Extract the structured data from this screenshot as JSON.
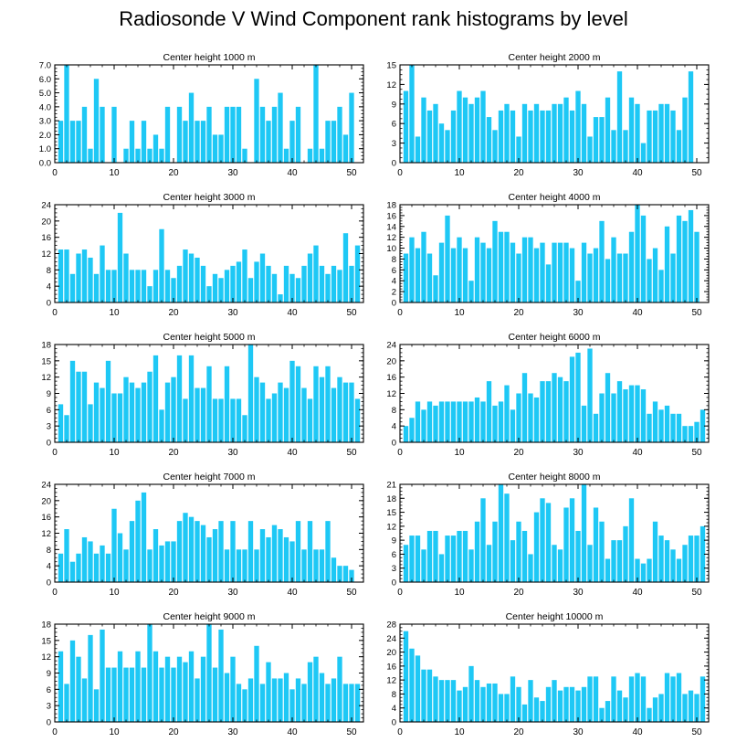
{
  "figure": {
    "title": "Radiosonde V Wind Component rank histograms by level",
    "bar_color": "#1ec8f5",
    "axis_color": "#000000"
  },
  "chart_data": [
    {
      "type": "bar",
      "title": "Center height 1000 m",
      "x": [
        1,
        2,
        3,
        4,
        5,
        6,
        7,
        8,
        9,
        10,
        11,
        12,
        13,
        14,
        15,
        16,
        17,
        18,
        19,
        20,
        21,
        22,
        23,
        24,
        25,
        26,
        27,
        28,
        29,
        30,
        31,
        32,
        33,
        34,
        35,
        36,
        37,
        38,
        39,
        40,
        41,
        42,
        43,
        44,
        45,
        46,
        47,
        48,
        49,
        50,
        51
      ],
      "values": [
        3,
        7,
        3,
        3,
        4,
        1,
        6,
        4,
        0,
        4,
        0,
        1,
        3,
        1,
        3,
        1,
        2,
        1,
        4,
        0,
        4,
        3,
        5,
        3,
        3,
        4,
        2,
        2,
        4,
        4,
        4,
        1,
        0,
        6,
        4,
        3,
        4,
        5,
        1,
        3,
        4,
        0,
        1,
        7,
        1,
        3,
        3,
        4,
        2,
        5,
        0
      ],
      "xlim": [
        0,
        52
      ],
      "xticks": [
        0,
        10,
        20,
        30,
        40,
        50
      ],
      "ylim": [
        0,
        7
      ],
      "yticks": [
        0,
        1,
        2,
        3,
        4,
        5,
        6,
        7
      ],
      "ytick_labels": [
        "0.0",
        "1.0",
        "2.0",
        "3.0",
        "4.0",
        "5.0",
        "6.0",
        "7.0"
      ],
      "xlabel": "",
      "ylabel": "",
      "ytick_side": "left"
    },
    {
      "type": "bar",
      "title": "Center height 2000 m",
      "x": [
        1,
        2,
        3,
        4,
        5,
        6,
        7,
        8,
        9,
        10,
        11,
        12,
        13,
        14,
        15,
        16,
        17,
        18,
        19,
        20,
        21,
        22,
        23,
        24,
        25,
        26,
        27,
        28,
        29,
        30,
        31,
        32,
        33,
        34,
        35,
        36,
        37,
        38,
        39,
        40,
        41,
        42,
        43,
        44,
        45,
        46,
        47,
        48,
        49,
        50,
        51
      ],
      "values": [
        11,
        15,
        4,
        10,
        8,
        9,
        6,
        5,
        8,
        11,
        10,
        9,
        10,
        11,
        7,
        5,
        8,
        9,
        8,
        4,
        9,
        8,
        9,
        8,
        8,
        9,
        9,
        10,
        8,
        11,
        9,
        4,
        7,
        7,
        10,
        5,
        14,
        5,
        10,
        9,
        3,
        8,
        8,
        9,
        9,
        8,
        5,
        10,
        14,
        0,
        0
      ],
      "xlim": [
        0,
        52
      ],
      "xticks": [
        0,
        10,
        20,
        30,
        40,
        50
      ],
      "ylim": [
        0,
        15
      ],
      "yticks": [
        0,
        3,
        6,
        9,
        12,
        15
      ],
      "ytick_labels": [
        "0",
        "3",
        "6",
        "9",
        "12",
        "15"
      ],
      "xlabel": "",
      "ylabel": "",
      "ytick_side": "left"
    },
    {
      "type": "bar",
      "title": "Center height 3000 m",
      "x": [
        1,
        2,
        3,
        4,
        5,
        6,
        7,
        8,
        9,
        10,
        11,
        12,
        13,
        14,
        15,
        16,
        17,
        18,
        19,
        20,
        21,
        22,
        23,
        24,
        25,
        26,
        27,
        28,
        29,
        30,
        31,
        32,
        33,
        34,
        35,
        36,
        37,
        38,
        39,
        40,
        41,
        42,
        43,
        44,
        45,
        46,
        47,
        48,
        49,
        50,
        51
      ],
      "values": [
        13,
        13,
        7,
        12,
        13,
        11,
        7,
        14,
        8,
        8,
        22,
        12,
        8,
        8,
        8,
        4,
        8,
        18,
        8,
        6,
        9,
        13,
        12,
        11,
        9,
        4,
        7,
        6,
        8,
        9,
        10,
        13,
        6,
        10,
        12,
        9,
        7,
        2,
        9,
        7,
        6,
        9,
        12,
        14,
        9,
        7,
        9,
        8,
        17,
        9,
        14
      ],
      "xlim": [
        0,
        52
      ],
      "xticks": [
        0,
        10,
        20,
        30,
        40,
        50
      ],
      "ylim": [
        0,
        24
      ],
      "yticks": [
        0,
        4,
        8,
        12,
        16,
        20,
        24
      ],
      "ytick_labels": [
        "0",
        "4",
        "8",
        "12",
        "16",
        "20",
        "24"
      ],
      "xlabel": "",
      "ylabel": "",
      "ytick_side": "left"
    },
    {
      "type": "bar",
      "title": "Center height 4000 m",
      "x": [
        1,
        2,
        3,
        4,
        5,
        6,
        7,
        8,
        9,
        10,
        11,
        12,
        13,
        14,
        15,
        16,
        17,
        18,
        19,
        20,
        21,
        22,
        23,
        24,
        25,
        26,
        27,
        28,
        29,
        30,
        31,
        32,
        33,
        34,
        35,
        36,
        37,
        38,
        39,
        40,
        41,
        42,
        43,
        44,
        45,
        46,
        47,
        48,
        49,
        50,
        51
      ],
      "values": [
        9,
        12,
        10,
        13,
        9,
        5,
        11,
        16,
        10,
        12,
        10,
        4,
        12,
        11,
        10,
        15,
        13,
        13,
        11,
        9,
        12,
        12,
        10,
        11,
        7,
        11,
        11,
        11,
        10,
        4,
        11,
        9,
        10,
        15,
        8,
        12,
        9,
        9,
        13,
        18,
        16,
        8,
        10,
        6,
        14,
        9,
        16,
        15,
        17,
        13,
        0
      ],
      "xlim": [
        0,
        52
      ],
      "xticks": [
        0,
        10,
        20,
        30,
        40,
        50
      ],
      "ylim": [
        0,
        18
      ],
      "yticks": [
        0,
        2,
        4,
        6,
        8,
        10,
        12,
        14,
        16,
        18
      ],
      "ytick_labels": [
        "0",
        "2",
        "4",
        "6",
        "8",
        "10",
        "12",
        "14",
        "16",
        "18"
      ],
      "xlabel": "",
      "ylabel": "",
      "ytick_side": "left"
    },
    {
      "type": "bar",
      "title": "Center height 5000 m",
      "x": [
        1,
        2,
        3,
        4,
        5,
        6,
        7,
        8,
        9,
        10,
        11,
        12,
        13,
        14,
        15,
        16,
        17,
        18,
        19,
        20,
        21,
        22,
        23,
        24,
        25,
        26,
        27,
        28,
        29,
        30,
        31,
        32,
        33,
        34,
        35,
        36,
        37,
        38,
        39,
        40,
        41,
        42,
        43,
        44,
        45,
        46,
        47,
        48,
        49,
        50,
        51
      ],
      "values": [
        7,
        5,
        15,
        13,
        13,
        7,
        11,
        10,
        15,
        9,
        9,
        12,
        11,
        10,
        11,
        13,
        16,
        6,
        11,
        12,
        16,
        8,
        16,
        10,
        10,
        14,
        8,
        8,
        14,
        8,
        8,
        5,
        18,
        12,
        11,
        8,
        9,
        11,
        10,
        15,
        14,
        10,
        8,
        14,
        12,
        14,
        10,
        12,
        11,
        11,
        8
      ],
      "xlim": [
        0,
        52
      ],
      "xticks": [
        0,
        10,
        20,
        30,
        40,
        50
      ],
      "ylim": [
        0,
        18
      ],
      "yticks": [
        0,
        3,
        6,
        9,
        12,
        15,
        18
      ],
      "ytick_labels": [
        "0",
        "3",
        "6",
        "9",
        "12",
        "15",
        "18"
      ],
      "xlabel": "",
      "ylabel": "",
      "ytick_side": "left"
    },
    {
      "type": "bar",
      "title": "Center height 6000 m",
      "x": [
        1,
        2,
        3,
        4,
        5,
        6,
        7,
        8,
        9,
        10,
        11,
        12,
        13,
        14,
        15,
        16,
        17,
        18,
        19,
        20,
        21,
        22,
        23,
        24,
        25,
        26,
        27,
        28,
        29,
        30,
        31,
        32,
        33,
        34,
        35,
        36,
        37,
        38,
        39,
        40,
        41,
        42,
        43,
        44,
        45,
        46,
        47,
        48,
        49,
        50,
        51
      ],
      "values": [
        4,
        6,
        10,
        8,
        10,
        9,
        10,
        10,
        10,
        10,
        10,
        10,
        11,
        10,
        15,
        9,
        10,
        14,
        8,
        12,
        17,
        12,
        11,
        15,
        15,
        17,
        16,
        15,
        21,
        22,
        9,
        23,
        7,
        12,
        17,
        12,
        15,
        13,
        14,
        14,
        13,
        7,
        10,
        8,
        9,
        7,
        7,
        4,
        4,
        5,
        8
      ],
      "xlim": [
        0,
        52
      ],
      "xticks": [
        0,
        10,
        20,
        30,
        40,
        50
      ],
      "ylim": [
        0,
        24
      ],
      "yticks": [
        0,
        4,
        8,
        12,
        16,
        20,
        24
      ],
      "ytick_labels": [
        "0",
        "4",
        "8",
        "12",
        "16",
        "20",
        "24"
      ],
      "xlabel": "",
      "ylabel": "",
      "ytick_side": "left"
    },
    {
      "type": "bar",
      "title": "Center height 7000 m",
      "x": [
        1,
        2,
        3,
        4,
        5,
        6,
        7,
        8,
        9,
        10,
        11,
        12,
        13,
        14,
        15,
        16,
        17,
        18,
        19,
        20,
        21,
        22,
        23,
        24,
        25,
        26,
        27,
        28,
        29,
        30,
        31,
        32,
        33,
        34,
        35,
        36,
        37,
        38,
        39,
        40,
        41,
        42,
        43,
        44,
        45,
        46,
        47,
        48,
        49,
        50,
        51
      ],
      "values": [
        7,
        13,
        5,
        7,
        11,
        10,
        7,
        9,
        7,
        18,
        12,
        8,
        15,
        20,
        22,
        8,
        13,
        9,
        10,
        10,
        15,
        17,
        16,
        15,
        14,
        11,
        13,
        15,
        8,
        15,
        8,
        8,
        15,
        8,
        13,
        11,
        14,
        13,
        11,
        10,
        15,
        8,
        15,
        8,
        8,
        15,
        6,
        4,
        4,
        3,
        0
      ],
      "xlim": [
        0,
        52
      ],
      "xticks": [
        0,
        10,
        20,
        30,
        40,
        50
      ],
      "ylim": [
        0,
        24
      ],
      "yticks": [
        0,
        4,
        8,
        12,
        16,
        20,
        24
      ],
      "ytick_labels": [
        "0",
        "4",
        "8",
        "12",
        "16",
        "20",
        "24"
      ],
      "xlabel": "",
      "ylabel": "",
      "ytick_side": "left"
    },
    {
      "type": "bar",
      "title": "Center height 8000 m",
      "x": [
        1,
        2,
        3,
        4,
        5,
        6,
        7,
        8,
        9,
        10,
        11,
        12,
        13,
        14,
        15,
        16,
        17,
        18,
        19,
        20,
        21,
        22,
        23,
        24,
        25,
        26,
        27,
        28,
        29,
        30,
        31,
        32,
        33,
        34,
        35,
        36,
        37,
        38,
        39,
        40,
        41,
        42,
        43,
        44,
        45,
        46,
        47,
        48,
        49,
        50,
        51
      ],
      "values": [
        8,
        10,
        10,
        7,
        11,
        11,
        6,
        10,
        10,
        11,
        11,
        7,
        13,
        18,
        8,
        13,
        21,
        19,
        9,
        13,
        11,
        6,
        15,
        18,
        17,
        8,
        7,
        16,
        18,
        11,
        21,
        8,
        16,
        13,
        5,
        9,
        9,
        12,
        18,
        5,
        4,
        5,
        13,
        10,
        9,
        7,
        5,
        8,
        10,
        10,
        12
      ],
      "xlim": [
        0,
        52
      ],
      "xticks": [
        0,
        10,
        20,
        30,
        40,
        50
      ],
      "ylim": [
        0,
        21
      ],
      "yticks": [
        0,
        3,
        6,
        9,
        12,
        15,
        18,
        21
      ],
      "ytick_labels": [
        "0",
        "3",
        "6",
        "9",
        "12",
        "15",
        "18",
        "21"
      ],
      "xlabel": "",
      "ylabel": "",
      "ytick_side": "left"
    },
    {
      "type": "bar",
      "title": "Center height 9000 m",
      "x": [
        1,
        2,
        3,
        4,
        5,
        6,
        7,
        8,
        9,
        10,
        11,
        12,
        13,
        14,
        15,
        16,
        17,
        18,
        19,
        20,
        21,
        22,
        23,
        24,
        25,
        26,
        27,
        28,
        29,
        30,
        31,
        32,
        33,
        34,
        35,
        36,
        37,
        38,
        39,
        40,
        41,
        42,
        43,
        44,
        45,
        46,
        47,
        48,
        49,
        50,
        51
      ],
      "values": [
        13,
        7,
        15,
        12,
        8,
        16,
        6,
        17,
        10,
        10,
        13,
        10,
        10,
        13,
        10,
        18,
        13,
        10,
        12,
        10,
        12,
        11,
        13,
        8,
        12,
        18,
        10,
        17,
        9,
        12,
        7,
        6,
        8,
        14,
        7,
        11,
        8,
        8,
        9,
        6,
        8,
        7,
        11,
        12,
        9,
        7,
        8,
        12,
        7,
        7,
        7
      ],
      "xlim": [
        0,
        52
      ],
      "xticks": [
        0,
        10,
        20,
        30,
        40,
        50
      ],
      "ylim": [
        0,
        18
      ],
      "yticks": [
        0,
        3,
        6,
        9,
        12,
        15,
        18
      ],
      "ytick_labels": [
        "0",
        "3",
        "6",
        "9",
        "12",
        "15",
        "18"
      ],
      "xlabel": "",
      "ylabel": "",
      "ytick_side": "left"
    },
    {
      "type": "bar",
      "title": "Center height 10000 m",
      "x": [
        1,
        2,
        3,
        4,
        5,
        6,
        7,
        8,
        9,
        10,
        11,
        12,
        13,
        14,
        15,
        16,
        17,
        18,
        19,
        20,
        21,
        22,
        23,
        24,
        25,
        26,
        27,
        28,
        29,
        30,
        31,
        32,
        33,
        34,
        35,
        36,
        37,
        38,
        39,
        40,
        41,
        42,
        43,
        44,
        45,
        46,
        47,
        48,
        49,
        50,
        51
      ],
      "values": [
        26,
        21,
        19,
        15,
        15,
        13,
        12,
        12,
        12,
        9,
        10,
        16,
        12,
        10,
        11,
        11,
        8,
        8,
        13,
        10,
        5,
        12,
        7,
        6,
        10,
        12,
        9,
        10,
        10,
        9,
        10,
        13,
        13,
        4,
        6,
        13,
        9,
        7,
        13,
        14,
        13,
        4,
        7,
        8,
        14,
        13,
        14,
        8,
        9,
        8,
        13
      ],
      "xlim": [
        0,
        52
      ],
      "xticks": [
        0,
        10,
        20,
        30,
        40,
        50
      ],
      "ylim": [
        0,
        28
      ],
      "yticks": [
        0,
        4,
        8,
        12,
        16,
        20,
        24,
        28
      ],
      "ytick_labels": [
        "0",
        "4",
        "8",
        "12",
        "16",
        "20",
        "24",
        "28"
      ],
      "xlabel": "",
      "ylabel": "",
      "ytick_side": "left"
    }
  ]
}
